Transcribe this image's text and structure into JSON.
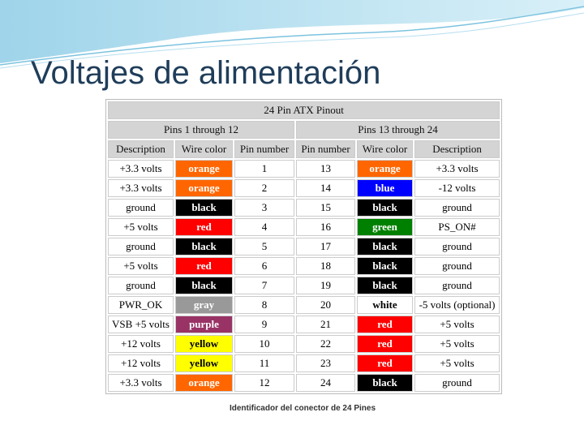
{
  "title": "Voltajes de alimentación",
  "table": {
    "title": "24 Pin ATX Pinout",
    "groups": [
      "Pins 1 through 12",
      "Pins 13 through 24"
    ],
    "columns": [
      "Description",
      "Wire color",
      "Pin number",
      "Pin number",
      "Wire color",
      "Description"
    ],
    "rows": [
      [
        "+3.3 volts",
        "orange",
        "1",
        "13",
        "orange",
        "+3.3 volts"
      ],
      [
        "+3.3 volts",
        "orange",
        "2",
        "14",
        "blue",
        "-12 volts"
      ],
      [
        "ground",
        "black",
        "3",
        "15",
        "black",
        "ground"
      ],
      [
        "+5 volts",
        "red",
        "4",
        "16",
        "green",
        "PS_ON#"
      ],
      [
        "ground",
        "black",
        "5",
        "17",
        "black",
        "ground"
      ],
      [
        "+5 volts",
        "red",
        "6",
        "18",
        "black",
        "ground"
      ],
      [
        "ground",
        "black",
        "7",
        "19",
        "black",
        "ground"
      ],
      [
        "PWR_OK",
        "gray",
        "8",
        "20",
        "white",
        "-5 volts (optional)"
      ],
      [
        "VSB +5 volts",
        "purple",
        "9",
        "21",
        "red",
        "+5 volts"
      ],
      [
        "+12 volts",
        "yellow",
        "10",
        "22",
        "red",
        "+5 volts"
      ],
      [
        "+12 volts",
        "yellow",
        "11",
        "23",
        "red",
        "+5 volts"
      ],
      [
        "+3.3 volts",
        "orange",
        "12",
        "24",
        "black",
        "ground"
      ]
    ],
    "wire_fill": [
      [
        "#ff6600",
        "#ff6600"
      ],
      [
        "#ff6600",
        "#0000ff"
      ],
      [
        "#000000",
        "#000000"
      ],
      [
        "#ff0000",
        "#008000"
      ],
      [
        "#000000",
        "#000000"
      ],
      [
        "#ff0000",
        "#000000"
      ],
      [
        "#000000",
        "#000000"
      ],
      [
        "#999999",
        "#ffffff"
      ],
      [
        "#993366",
        "#ff0000"
      ],
      [
        "#ffff00",
        "#ff0000"
      ],
      [
        "#ffff00",
        "#ff0000"
      ],
      [
        "#ff6600",
        "#000000"
      ]
    ],
    "wire_ink": [
      [
        "#ffffff",
        "#ffffff"
      ],
      [
        "#ffffff",
        "#ffffff"
      ],
      [
        "#ffffff",
        "#ffffff"
      ],
      [
        "#ffffff",
        "#ffffff"
      ],
      [
        "#ffffff",
        "#ffffff"
      ],
      [
        "#ffffff",
        "#ffffff"
      ],
      [
        "#ffffff",
        "#ffffff"
      ],
      [
        "#ffffff",
        "#000000"
      ],
      [
        "#ffffff",
        "#ffffff"
      ],
      [
        "#000000",
        "#ffffff"
      ],
      [
        "#000000",
        "#ffffff"
      ],
      [
        "#ffffff",
        "#ffffff"
      ]
    ],
    "caption": "Identificador del conector de 24 Pines"
  }
}
